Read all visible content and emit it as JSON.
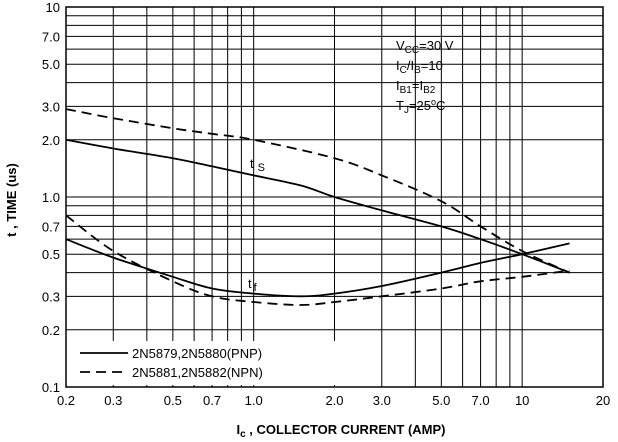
{
  "chart_data": {
    "type": "line",
    "x_scale": "log",
    "y_scale": "log",
    "xlim": [
      0.2,
      20
    ],
    "ylim": [
      0.1,
      10
    ],
    "x_ticks": [
      0.2,
      0.3,
      0.5,
      0.7,
      1.0,
      2.0,
      3.0,
      5.0,
      7.0,
      10,
      20
    ],
    "x_tick_labels": [
      "0.2",
      "0.3",
      "0.5",
      "0.7",
      "1.0",
      "2.0",
      "3.0",
      "5.0",
      "7.0",
      "10",
      "20"
    ],
    "y_ticks": [
      0.1,
      0.2,
      0.3,
      0.5,
      0.7,
      1.0,
      2.0,
      3.0,
      5.0,
      7.0,
      10
    ],
    "y_tick_labels": [
      "0.1",
      "0.2",
      "0.3",
      "0.5",
      "0.7",
      "1.0",
      "2.0",
      "3.0",
      "5.0",
      "7.0",
      "10"
    ],
    "xlabel": "Ic , COLLECTOR CURRENT (AMP)",
    "ylabel": "t , TIME (us)",
    "grid": true,
    "conditions": [
      "VCC=30 V",
      "IC/IB=10",
      "IB1=IB2",
      "TJ=25°C"
    ],
    "annotations": [
      "t s",
      "t f"
    ],
    "legend": {
      "placement": "bottom-left",
      "entries": [
        {
          "label": "2N5879,2N5880(PNP)",
          "style": "solid"
        },
        {
          "label": "2N5881,2N5882(NPN)",
          "style": "dashed"
        }
      ]
    },
    "series": [
      {
        "name": "2N5879,2N5880(PNP)",
        "parameter": "ts",
        "style": "solid",
        "x": [
          0.2,
          0.3,
          0.5,
          0.7,
          1.0,
          1.5,
          2.0,
          3.0,
          5.0,
          7.0,
          10,
          15
        ],
        "y": [
          2.0,
          1.8,
          1.6,
          1.45,
          1.3,
          1.15,
          1.0,
          0.85,
          0.7,
          0.6,
          0.5,
          0.4
        ]
      },
      {
        "name": "2N5881,2N5882(NPN)",
        "parameter": "ts",
        "style": "dashed",
        "x": [
          0.2,
          0.3,
          0.5,
          0.7,
          1.0,
          2.0,
          3.0,
          5.0,
          7.0,
          10,
          15
        ],
        "y": [
          2.9,
          2.6,
          2.3,
          2.15,
          2.0,
          1.6,
          1.3,
          0.95,
          0.7,
          0.52,
          0.4
        ]
      },
      {
        "name": "2N5879,2N5880(PNP)",
        "parameter": "tf",
        "style": "solid",
        "x": [
          0.2,
          0.3,
          0.5,
          0.7,
          1.0,
          1.5,
          2.0,
          3.0,
          5.0,
          7.0,
          10,
          15
        ],
        "y": [
          0.6,
          0.48,
          0.38,
          0.33,
          0.31,
          0.3,
          0.31,
          0.34,
          0.4,
          0.45,
          0.5,
          0.57
        ]
      },
      {
        "name": "2N5881,2N5882(NPN)",
        "parameter": "tf",
        "style": "dashed",
        "x": [
          0.2,
          0.3,
          0.5,
          0.7,
          1.0,
          1.5,
          2.0,
          3.0,
          5.0,
          7.0,
          10,
          15
        ],
        "y": [
          0.8,
          0.52,
          0.36,
          0.3,
          0.28,
          0.27,
          0.28,
          0.3,
          0.33,
          0.36,
          0.38,
          0.41
        ]
      }
    ]
  }
}
